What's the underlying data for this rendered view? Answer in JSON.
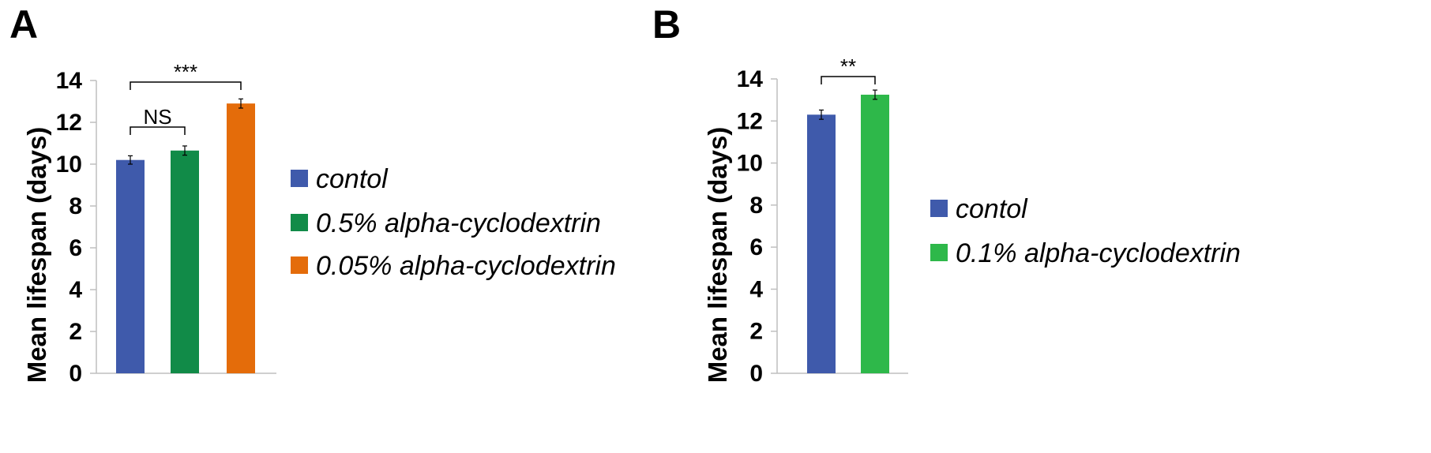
{
  "figure": {
    "panel_labels": [
      "A",
      "B"
    ]
  },
  "chart_data": [
    {
      "type": "bar",
      "panel": "A",
      "ylabel": "Mean lifespan (days)",
      "ylim": [
        0,
        14
      ],
      "yticks": [
        0,
        2,
        4,
        6,
        8,
        10,
        12,
        14
      ],
      "categories": [
        "contol",
        "0.5% alpha-cyclodextrin",
        "0.05% alpha-cyclodextrin"
      ],
      "values": [
        10.2,
        10.65,
        12.9
      ],
      "errors": [
        0.2,
        0.22,
        0.22
      ],
      "colors": [
        "#3F5AAB",
        "#118B48",
        "#E46C0A"
      ],
      "legend": [
        "contol",
        "0.5% alpha-cyclodextrin",
        "0.05% alpha-cyclodextrin"
      ],
      "legend_position": "right",
      "grid": false,
      "annotations": [
        {
          "from": 0,
          "to": 1,
          "text": "NS"
        },
        {
          "from": 0,
          "to": 2,
          "text": "***"
        }
      ]
    },
    {
      "type": "bar",
      "panel": "B",
      "ylabel": "Mean lifespan (days)",
      "ylim": [
        0,
        14
      ],
      "yticks": [
        0,
        2,
        4,
        6,
        8,
        10,
        12,
        14
      ],
      "categories": [
        "contol",
        "0.1% alpha-cyclodextrin"
      ],
      "values": [
        12.3,
        13.25
      ],
      "errors": [
        0.22,
        0.22
      ],
      "colors": [
        "#3F5AAB",
        "#2EB84A"
      ],
      "legend": [
        "contol",
        "0.1% alpha-cyclodextrin"
      ],
      "legend_position": "right",
      "grid": false,
      "annotations": [
        {
          "from": 0,
          "to": 1,
          "text": "**"
        }
      ]
    }
  ]
}
